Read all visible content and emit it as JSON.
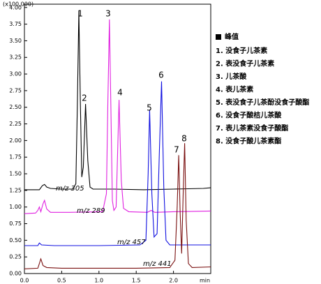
{
  "chart_data": {
    "type": "line",
    "y_label": "(x100,000)",
    "x_label": "min",
    "xlim": [
      0,
      2.5
    ],
    "xticks": [
      {
        "value": 0,
        "label": "0.0"
      },
      {
        "value": 0.5,
        "label": "0.5"
      },
      {
        "value": 1,
        "label": "1.0"
      },
      {
        "value": 1.5,
        "label": "1.5"
      },
      {
        "value": 2,
        "label": "2.0"
      }
    ],
    "ylim": [
      0,
      4.05
    ],
    "yticks": [
      {
        "value": 0,
        "label": "0.00"
      },
      {
        "value": 0.25,
        "label": "0.25"
      },
      {
        "value": 0.5,
        "label": "0.50"
      },
      {
        "value": 0.75,
        "label": "0.75"
      },
      {
        "value": 1,
        "label": "1.00"
      },
      {
        "value": 1.25,
        "label": "1.25"
      },
      {
        "value": 1.5,
        "label": "1.50"
      },
      {
        "value": 1.75,
        "label": "1.75"
      },
      {
        "value": 2,
        "label": "2.00"
      },
      {
        "value": 2.25,
        "label": "2.25"
      },
      {
        "value": 2.5,
        "label": "2.50"
      },
      {
        "value": 2.75,
        "label": "2.75"
      },
      {
        "value": 3,
        "label": "3.00"
      },
      {
        "value": 3.25,
        "label": "3.25"
      },
      {
        "value": 3.5,
        "label": "3.50"
      },
      {
        "value": 3.75,
        "label": "3.75"
      },
      {
        "value": 4,
        "label": "4.00"
      }
    ],
    "series": [
      {
        "name": "m/z 305",
        "color": "#000000",
        "x": [
          0.0,
          0.2,
          0.24,
          0.27,
          0.3,
          0.35,
          0.5,
          0.65,
          0.69,
          0.71,
          0.73,
          0.75,
          0.77,
          0.79,
          0.82,
          0.85,
          0.88,
          0.92,
          1.2,
          1.6,
          2.0,
          2.4,
          2.5
        ],
        "values": [
          1.26,
          1.26,
          1.32,
          1.34,
          1.3,
          1.28,
          1.27,
          1.27,
          1.35,
          2.5,
          3.95,
          2.6,
          1.45,
          1.6,
          2.55,
          1.7,
          1.3,
          1.27,
          1.27,
          1.26,
          1.27,
          1.28,
          1.29
        ]
      },
      {
        "name": "m/z 289",
        "color": "#e020e0",
        "x": [
          0.0,
          0.15,
          0.18,
          0.2,
          0.22,
          0.25,
          0.27,
          0.3,
          0.35,
          0.6,
          1.05,
          1.1,
          1.12,
          1.14,
          1.16,
          1.18,
          1.2,
          1.23,
          1.25,
          1.27,
          1.3,
          1.33,
          1.4,
          1.65,
          1.7,
          1.75,
          2.0,
          2.5
        ],
        "values": [
          0.9,
          0.91,
          0.95,
          1.0,
          0.93,
          1.05,
          1.1,
          0.97,
          0.92,
          0.92,
          0.93,
          1.2,
          2.6,
          3.82,
          2.5,
          1.1,
          0.95,
          1.0,
          1.8,
          2.61,
          1.4,
          0.98,
          0.93,
          0.92,
          0.95,
          0.92,
          0.93,
          0.94
        ]
      },
      {
        "name": "m/z 457",
        "color": "#1010e0",
        "x": [
          0.0,
          0.18,
          0.2,
          0.23,
          0.4,
          1.0,
          1.55,
          1.63,
          1.66,
          1.68,
          1.71,
          1.74,
          1.78,
          1.81,
          1.84,
          1.87,
          1.9,
          1.95,
          2.2,
          2.5
        ],
        "values": [
          0.42,
          0.42,
          0.46,
          0.43,
          0.42,
          0.42,
          0.43,
          0.5,
          1.5,
          2.46,
          1.2,
          0.55,
          0.6,
          1.8,
          2.89,
          1.3,
          0.5,
          0.43,
          0.43,
          0.43
        ]
      },
      {
        "name": "m/z 441",
        "color": "#7a1010",
        "x": [
          0.0,
          0.18,
          0.2,
          0.22,
          0.25,
          0.3,
          0.5,
          1.0,
          1.5,
          1.95,
          2.02,
          2.05,
          2.07,
          2.09,
          2.11,
          2.13,
          2.15,
          2.17,
          2.2,
          2.25,
          2.5
        ],
        "values": [
          0.07,
          0.08,
          0.15,
          0.22,
          0.12,
          0.09,
          0.08,
          0.08,
          0.08,
          0.09,
          0.2,
          1.0,
          1.78,
          0.9,
          0.3,
          1.2,
          1.96,
          0.8,
          0.15,
          0.09,
          0.1
        ]
      }
    ],
    "peak_labels": [
      "1",
      "2",
      "3",
      "4",
      "5",
      "6",
      "7",
      "8"
    ],
    "legend": {
      "title": "峰值",
      "items": [
        "1. 没食子儿茶素",
        "2. 表没食子儿茶素",
        "3. 儿茶酸",
        "4. 表儿茶素",
        "5. 表没食子儿茶酚没食子酸酯",
        "6. 没食子酸桔儿茶酸",
        "7. 表儿茶素没食子酸酯",
        "8. 没食子酸儿茶素酯"
      ]
    }
  }
}
